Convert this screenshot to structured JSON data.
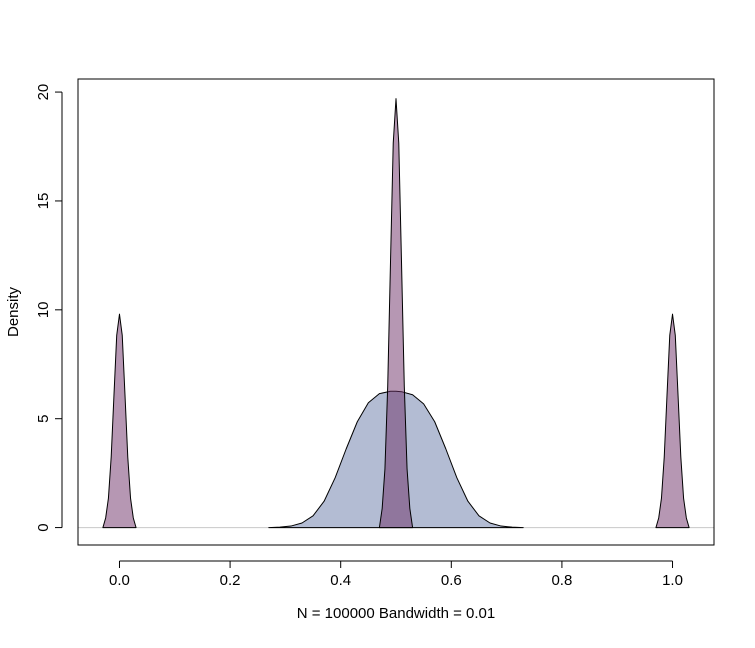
{
  "chart_data": {
    "type": "area",
    "title": "",
    "xlabel": "N = 100000   Bandwidth = 0.01",
    "ylabel": "Density",
    "xlim": [
      -0.075,
      1.075
    ],
    "ylim": [
      -0.8,
      20.6
    ],
    "x_ticks": [
      0.0,
      0.2,
      0.4,
      0.6,
      0.8,
      1.0
    ],
    "x_tick_labels": [
      "0.0",
      "0.2",
      "0.4",
      "0.6",
      "0.8",
      "1.0"
    ],
    "y_ticks": [
      0,
      5,
      10,
      15,
      20
    ],
    "y_tick_labels": [
      "0",
      "5",
      "10",
      "15",
      "20"
    ],
    "grid": false,
    "legend": "none",
    "baseline_color": "#c8c8c8",
    "series": [
      {
        "fill": "#4a6096",
        "opacity": 0.42,
        "x": [
          0.27,
          0.29,
          0.31,
          0.33,
          0.35,
          0.37,
          0.39,
          0.41,
          0.43,
          0.45,
          0.47,
          0.49,
          0.5,
          0.51,
          0.53,
          0.55,
          0.57,
          0.59,
          0.61,
          0.63,
          0.65,
          0.67,
          0.69,
          0.71,
          0.73
        ],
        "y": [
          0.0,
          0.02,
          0.07,
          0.21,
          0.54,
          1.21,
          2.29,
          3.62,
          4.86,
          5.73,
          6.15,
          6.26,
          6.26,
          6.24,
          6.1,
          5.68,
          4.86,
          3.62,
          2.29,
          1.21,
          0.54,
          0.21,
          0.07,
          0.02,
          0.0
        ]
      },
      {
        "fill": "#6e2f68",
        "opacity": 0.5,
        "x": [
          -0.03,
          -0.025,
          -0.02,
          -0.015,
          -0.01,
          -0.005,
          0.0,
          0.005,
          0.01,
          0.015,
          0.02,
          0.025,
          0.03
        ],
        "y": [
          0.0,
          0.44,
          1.35,
          3.24,
          6.07,
          8.83,
          9.8,
          8.83,
          6.07,
          3.24,
          1.35,
          0.44,
          0.0
        ]
      },
      {
        "fill": "#6e2f68",
        "opacity": 0.5,
        "x": [
          0.47,
          0.475,
          0.48,
          0.485,
          0.49,
          0.495,
          0.5,
          0.505,
          0.51,
          0.515,
          0.52,
          0.525,
          0.53
        ],
        "y": [
          0.0,
          0.88,
          2.7,
          6.48,
          12.14,
          17.66,
          19.7,
          17.66,
          12.14,
          6.48,
          2.7,
          0.88,
          0.0
        ]
      },
      {
        "fill": "#6e2f68",
        "opacity": 0.5,
        "x": [
          0.97,
          0.975,
          0.98,
          0.985,
          0.99,
          0.995,
          1.0,
          1.005,
          1.01,
          1.015,
          1.02,
          1.025,
          1.03
        ],
        "y": [
          0.0,
          0.44,
          1.35,
          3.24,
          6.07,
          8.83,
          9.8,
          8.83,
          6.07,
          3.24,
          1.35,
          0.44,
          0.0
        ]
      }
    ]
  }
}
